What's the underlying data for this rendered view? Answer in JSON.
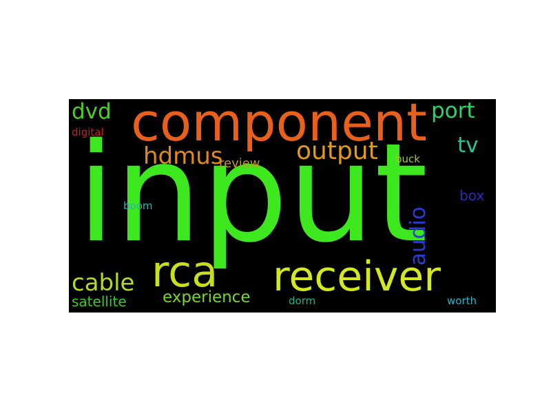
{
  "words": [
    {
      "key": "input",
      "text": "input",
      "color": "#3ee81f"
    },
    {
      "key": "component",
      "text": "component",
      "color": "#e8601c"
    },
    {
      "key": "receiver",
      "text": "receiver",
      "color": "#d4e81e"
    },
    {
      "key": "rca",
      "text": "rca",
      "color": "#c8e01c"
    },
    {
      "key": "output",
      "text": "output",
      "color": "#e09a1c"
    },
    {
      "key": "hdmus",
      "text": "hdmus",
      "color": "#e08a1c"
    },
    {
      "key": "cable",
      "text": "cable",
      "color": "#b4dc1e"
    },
    {
      "key": "audio",
      "text": "audio",
      "color": "#2a3ccc"
    },
    {
      "key": "experience",
      "text": "experience",
      "color": "#7ad81e"
    },
    {
      "key": "dvd",
      "text": "dvd",
      "color": "#4ccc2a"
    },
    {
      "key": "port",
      "text": "port",
      "color": "#2ad46a"
    },
    {
      "key": "tv",
      "text": "tv",
      "color": "#26c49a"
    },
    {
      "key": "satellite",
      "text": "satellite",
      "color": "#3ec82a"
    },
    {
      "key": "review",
      "text": "review",
      "color": "#c09a1e"
    },
    {
      "key": "digital",
      "text": "digital",
      "color": "#cc1e1e"
    },
    {
      "key": "buck",
      "text": "buck",
      "color": "#a8c81e"
    },
    {
      "key": "box",
      "text": "box",
      "color": "#2a2ab4"
    },
    {
      "key": "boom",
      "text": "boom",
      "color": "#26b4b4"
    },
    {
      "key": "dorm",
      "text": "dorm",
      "color": "#1eb48a"
    },
    {
      "key": "worth",
      "text": "worth",
      "color": "#26b4c8"
    }
  ]
}
